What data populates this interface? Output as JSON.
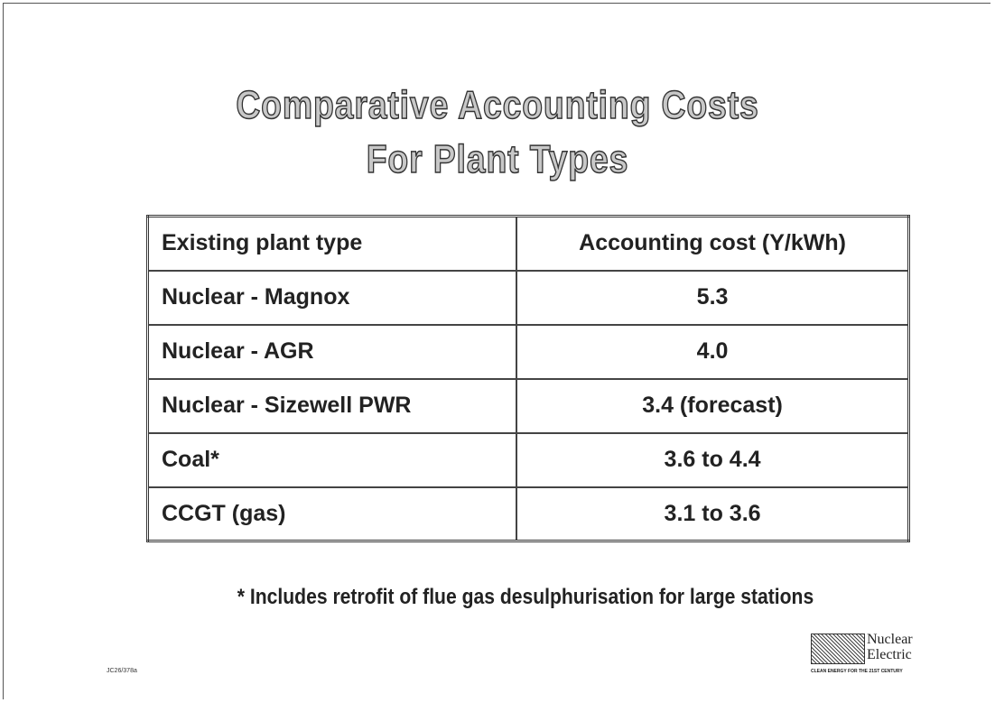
{
  "header": {
    "title": [
      "Comparative Accounting Costs",
      "For Plant Types"
    ]
  },
  "table": {
    "columns": [
      "Existing plant type",
      "Accounting cost (Y/kWh)"
    ],
    "rows": [
      [
        "Nuclear - Magnox",
        "5.3"
      ],
      [
        "Nuclear - AGR",
        "4.0"
      ],
      [
        "Nuclear - Sizewell PWR",
        "3.4 (forecast)"
      ],
      [
        "Coal*",
        "3.6 to 4.4"
      ],
      [
        "CCGT (gas)",
        "3.1 to 3.6"
      ]
    ]
  },
  "footnote": "* Includes retrofit of flue gas desulphurisation for large stations",
  "logo": {
    "name": [
      "Nuclear",
      "Electric"
    ],
    "tagline": "CLEAN ENERGY FOR THE 21ST CENTURY"
  },
  "code": "JC26/378a"
}
